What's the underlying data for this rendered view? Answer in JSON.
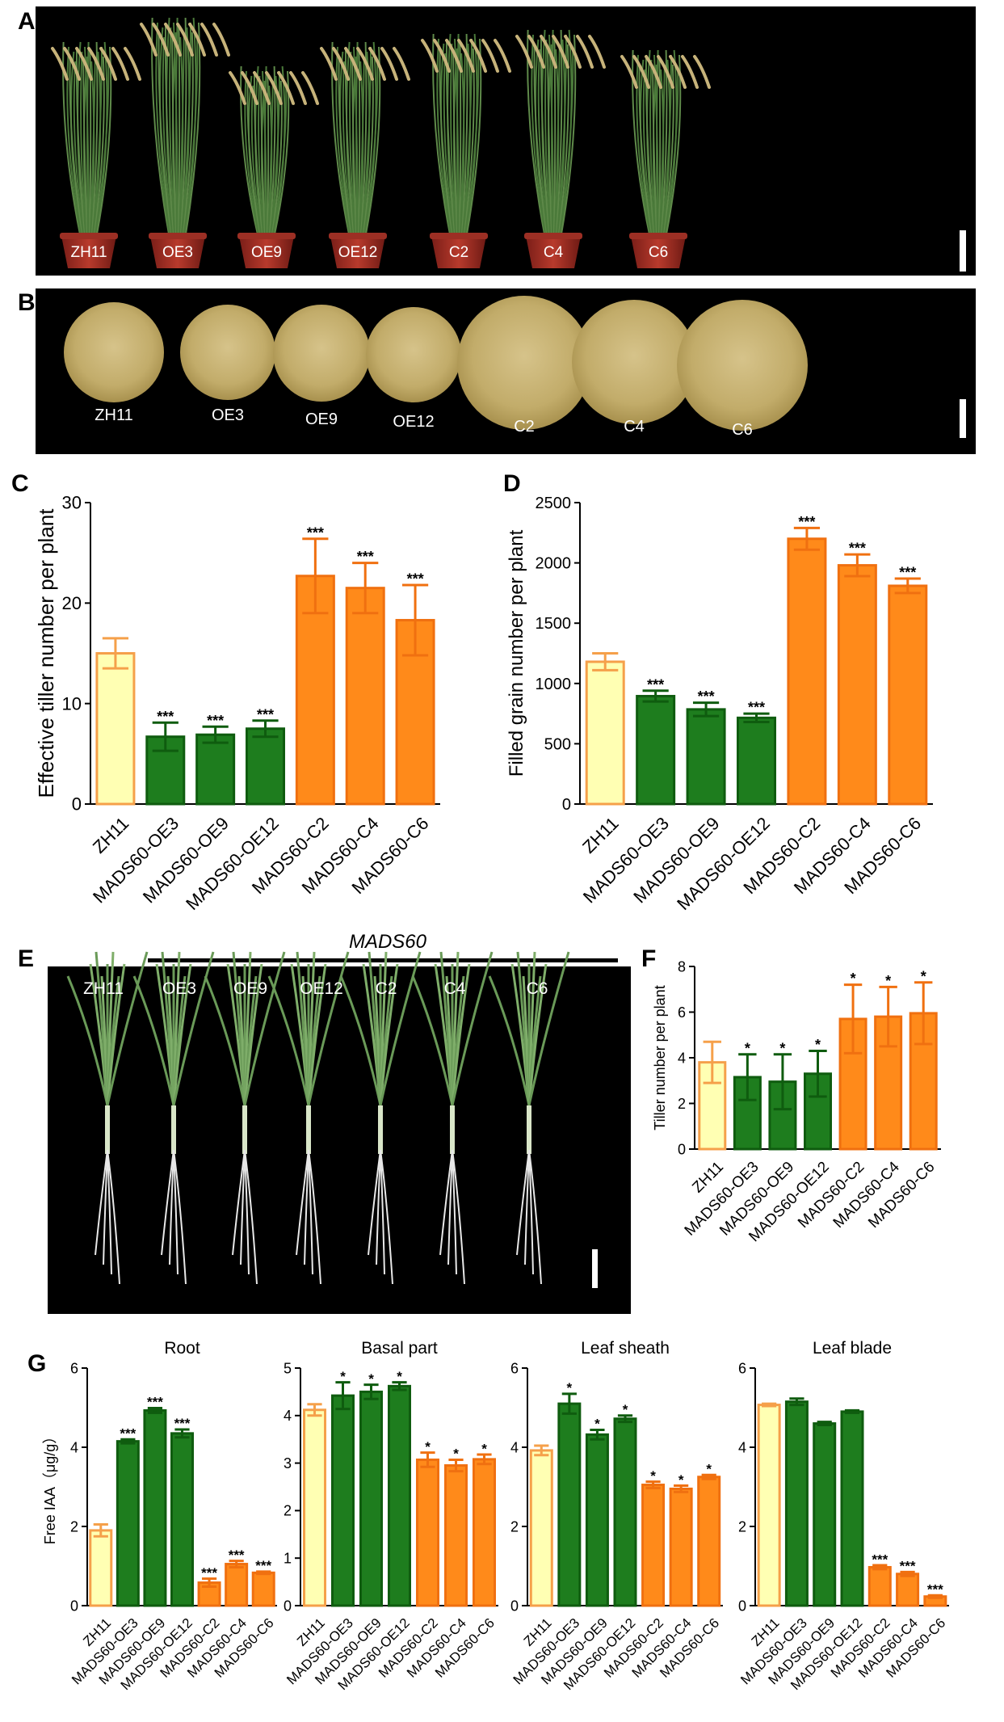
{
  "panels": {
    "A": {
      "letter": "A",
      "labels": [
        "ZH11",
        "OE3",
        "OE9",
        "OE12",
        "C2",
        "C4",
        "C6"
      ]
    },
    "B": {
      "letter": "B",
      "labels": [
        "ZH11",
        "OE3",
        "OE9",
        "OE12",
        "C2",
        "C4",
        "C6"
      ]
    },
    "C": {
      "letter": "C"
    },
    "D": {
      "letter": "D"
    },
    "E": {
      "letter": "E",
      "header": "MADS60",
      "labels": [
        "ZH11",
        "OE3",
        "OE9",
        "OE12",
        "C2",
        "C4",
        "C6"
      ]
    },
    "F": {
      "letter": "F"
    },
    "G": {
      "letter": "G"
    }
  },
  "colors": {
    "wt_fill": "#ffffb3",
    "wt_edge": "#f5a04a",
    "oe_fill": "#1e7d1e",
    "oe_edge": "#0f5c0f",
    "c_fill": "#ff8a1a",
    "c_edge": "#f07010",
    "photo_bg": "#000000"
  },
  "chart_data": [
    {
      "id": "C",
      "type": "bar",
      "categories": [
        "ZH11",
        "MADS60-OE3",
        "MADS60-OE9",
        "MADS60-OE12",
        "MADS60-C2",
        "MADS60-C4",
        "MADS60-C6"
      ],
      "values": [
        15,
        6.7,
        6.9,
        7.5,
        22.7,
        21.5,
        18.3
      ],
      "errors": [
        1.5,
        1.4,
        0.8,
        0.8,
        3.7,
        2.5,
        3.5
      ],
      "significance": [
        "",
        "***",
        "***",
        "***",
        "***",
        "***",
        "***"
      ],
      "ylabel": "Effective tiller number per plant",
      "ylim": [
        0,
        30
      ],
      "yticks": [
        0,
        10,
        20,
        30
      ],
      "title": ""
    },
    {
      "id": "D",
      "type": "bar",
      "categories": [
        "ZH11",
        "MADS60-OE3",
        "MADS60-OE9",
        "MADS60-OE12",
        "MADS60-C2",
        "MADS60-C4",
        "MADS60-C6"
      ],
      "values": [
        1180,
        895,
        785,
        715,
        2200,
        1980,
        1810
      ],
      "errors": [
        70,
        45,
        55,
        35,
        90,
        90,
        60
      ],
      "significance": [
        "",
        "***",
        "***",
        "***",
        "***",
        "***",
        "***"
      ],
      "ylabel": "Filled grain number per plant",
      "ylim": [
        0,
        2500
      ],
      "yticks": [
        0,
        500,
        1000,
        1500,
        2000,
        2500
      ],
      "title": ""
    },
    {
      "id": "F",
      "type": "bar",
      "categories": [
        "ZH11",
        "MADS60-OE3",
        "MADS60-OE9",
        "MADS60-OE12",
        "MADS60-C2",
        "MADS60-C4",
        "MADS60-C6"
      ],
      "values": [
        3.8,
        3.15,
        2.95,
        3.3,
        5.7,
        5.8,
        5.95
      ],
      "errors": [
        0.9,
        1.0,
        1.2,
        1.0,
        1.5,
        1.3,
        1.35
      ],
      "significance": [
        "",
        "*",
        "*",
        "*",
        "*",
        "*",
        "*"
      ],
      "ylabel": "Tiller number per plant",
      "ylim": [
        0,
        8
      ],
      "yticks": [
        0,
        2,
        4,
        6,
        8
      ],
      "title": ""
    },
    {
      "id": "G1",
      "type": "bar",
      "categories": [
        "ZH11",
        "MADS60-OE3",
        "MADS60-OE9",
        "MADS60-OE12",
        "MADS60-C2",
        "MADS60-C4",
        "MADS60-C6"
      ],
      "values": [
        1.9,
        4.15,
        4.93,
        4.35,
        0.58,
        1.05,
        0.83
      ],
      "errors": [
        0.15,
        0.05,
        0.06,
        0.1,
        0.1,
        0.08,
        0.03
      ],
      "significance": [
        "",
        "***",
        "***",
        "***",
        "***",
        "***",
        "***"
      ],
      "title": "Root",
      "ylabel": "Free IAA（μg/g）",
      "ylim": [
        0,
        6
      ],
      "yticks": [
        0,
        2,
        4,
        6
      ]
    },
    {
      "id": "G2",
      "type": "bar",
      "categories": [
        "ZH11",
        "MADS60-OE3",
        "MADS60-OE9",
        "MADS60-OE12",
        "MADS60-C2",
        "MADS60-C4",
        "MADS60-C6"
      ],
      "values": [
        4.12,
        4.42,
        4.5,
        4.62,
        3.07,
        2.95,
        3.08
      ],
      "errors": [
        0.12,
        0.28,
        0.15,
        0.08,
        0.15,
        0.12,
        0.1
      ],
      "significance": [
        "",
        "*",
        "*",
        "*",
        "*",
        "*",
        "*"
      ],
      "title": "Basal part",
      "ylabel": "",
      "ylim": [
        0,
        5
      ],
      "yticks": [
        0,
        1,
        2,
        3,
        4,
        5
      ]
    },
    {
      "id": "G3",
      "type": "bar",
      "categories": [
        "ZH11",
        "MADS60-OE3",
        "MADS60-OE9",
        "MADS60-OE12",
        "MADS60-C2",
        "MADS60-C4",
        "MADS60-C6"
      ],
      "values": [
        3.92,
        5.1,
        4.32,
        4.72,
        3.05,
        2.95,
        3.25
      ],
      "errors": [
        0.12,
        0.25,
        0.12,
        0.08,
        0.08,
        0.08,
        0.05
      ],
      "significance": [
        "",
        "*",
        "*",
        "*",
        "*",
        "*",
        "*"
      ],
      "title": "Leaf sheath",
      "ylabel": "",
      "ylim": [
        0,
        6
      ],
      "yticks": [
        0,
        2,
        4,
        6
      ]
    },
    {
      "id": "G4",
      "type": "bar",
      "categories": [
        "ZH11",
        "MADS60-OE3",
        "MADS60-OE9",
        "MADS60-OE12",
        "MADS60-C2",
        "MADS60-C4",
        "MADS60-C6"
      ],
      "values": [
        5.07,
        5.15,
        4.6,
        4.9,
        0.97,
        0.8,
        0.23
      ],
      "errors": [
        0.03,
        0.08,
        0.04,
        0.03,
        0.05,
        0.05,
        0.03
      ],
      "significance": [
        "",
        "",
        "",
        "",
        "***",
        "***",
        "***"
      ],
      "title": "Leaf blade",
      "ylabel": "",
      "ylim": [
        0,
        6
      ],
      "yticks": [
        0,
        2,
        4,
        6
      ]
    }
  ]
}
